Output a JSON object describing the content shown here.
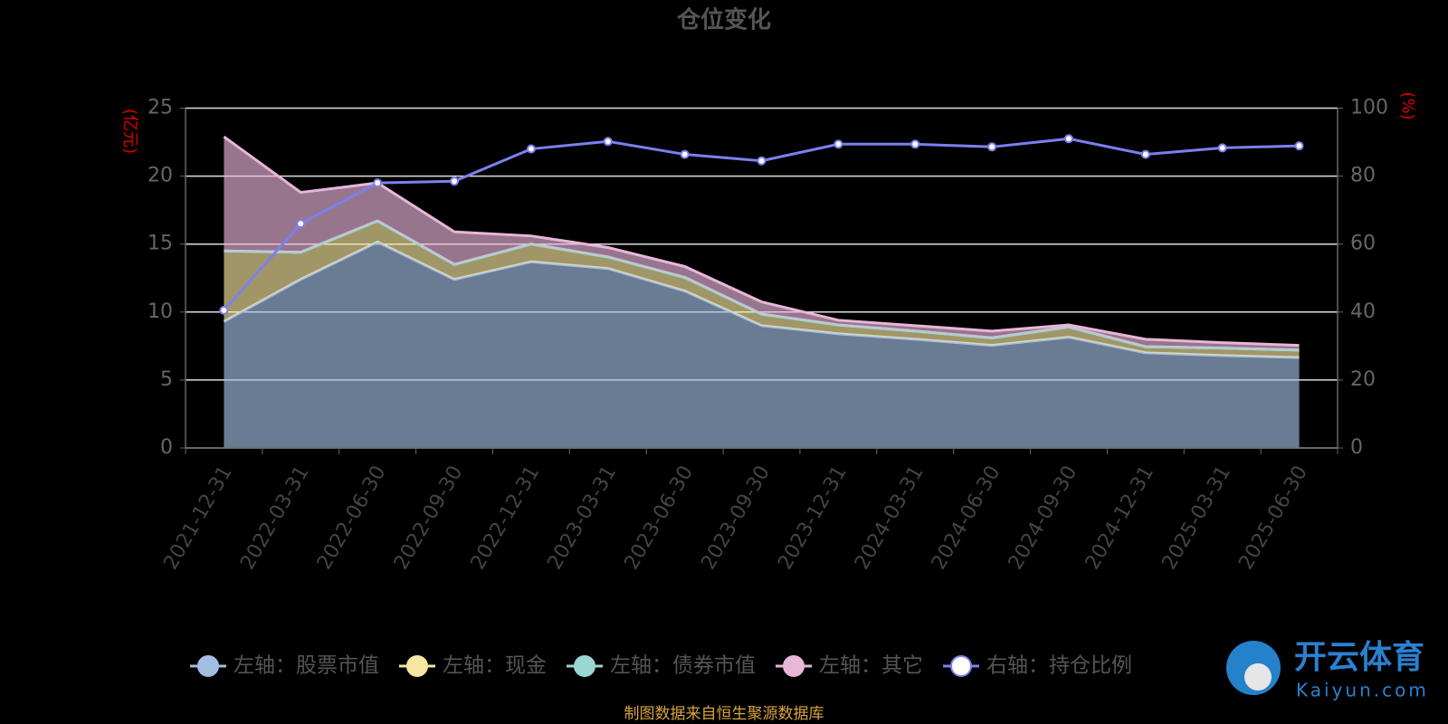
{
  "chart_data": {
    "type": "stacked-area-line",
    "title": "仓位变化",
    "y_label": "(亿元)",
    "y2_label": "(%)",
    "categories": [
      "2021-12-31",
      "2022-03-31",
      "2022-06-30",
      "2022-09-30",
      "2022-12-31",
      "2023-03-31",
      "2023-06-30",
      "2023-09-30",
      "2023-12-31",
      "2024-03-31",
      "2024-06-30",
      "2024-09-30",
      "2024-12-31",
      "2025-03-31",
      "2025-06-30"
    ],
    "series": [
      {
        "name": "左轴：股票市值",
        "color": "#a3bde3",
        "values": [
          9.3,
          12.4,
          15.15,
          12.4,
          13.7,
          13.2,
          11.55,
          9.0,
          8.4,
          8.0,
          7.55,
          8.15,
          7.0,
          6.8,
          6.65
        ]
      },
      {
        "name": "左轴：现金",
        "color": "#f7e6a0",
        "values": [
          5.2,
          2.0,
          1.55,
          1.1,
          1.3,
          0.85,
          1.0,
          0.85,
          0.65,
          0.6,
          0.55,
          0.75,
          0.45,
          0.55,
          0.55
        ]
      },
      {
        "name": "左轴：债券市值",
        "color": "#9ad6d4",
        "values": [
          0,
          0,
          0,
          0,
          0,
          0,
          0,
          0,
          0,
          0,
          0,
          0,
          0,
          0,
          0
        ]
      },
      {
        "name": "左轴：其它",
        "color": "#e8b6d8",
        "values": [
          8.4,
          4.4,
          2.8,
          2.4,
          0.6,
          0.7,
          0.8,
          0.9,
          0.35,
          0.4,
          0.5,
          0.15,
          0.55,
          0.4,
          0.35
        ]
      },
      {
        "name": "右轴：持仓比例",
        "color": "#7b80f0",
        "axis": "y2",
        "values": [
          40.5,
          66,
          78,
          78.5,
          88,
          90.2,
          86.4,
          84.5,
          89.4,
          89.4,
          88.6,
          91,
          86.4,
          88.3,
          88.9
        ]
      }
    ],
    "ylim": [
      0,
      25
    ],
    "yticks": [
      0,
      5,
      10,
      15,
      20,
      25
    ],
    "y2lim": [
      0,
      100
    ],
    "y2ticks": [
      0,
      20,
      40,
      60,
      80,
      100
    ],
    "grid": true,
    "source": "制图数据来自恒生聚源数据库",
    "watermark": {
      "title": "开云体育",
      "subtitle": "Kaiyun.com"
    }
  }
}
